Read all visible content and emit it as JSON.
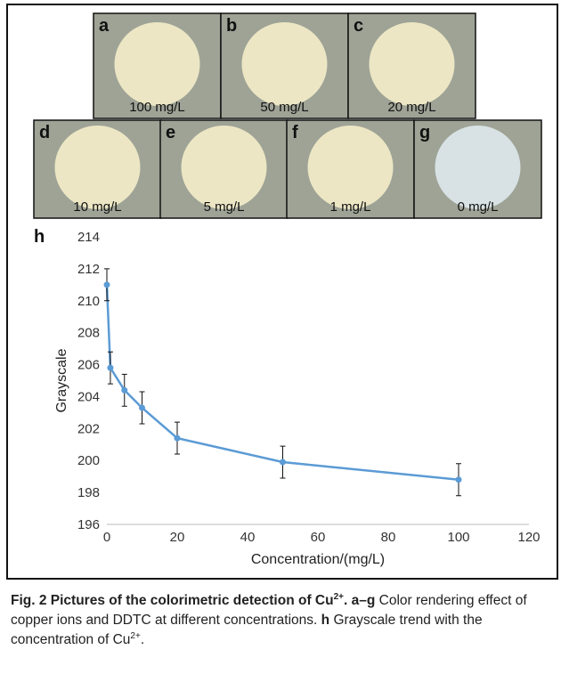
{
  "panels": [
    {
      "letter": "a",
      "label": "100 mg/L"
    },
    {
      "letter": "b",
      "label": "50 mg/L"
    },
    {
      "letter": "c",
      "label": "20 mg/L"
    },
    {
      "letter": "d",
      "label": "10 mg/L"
    },
    {
      "letter": "e",
      "label": "5 mg/L"
    },
    {
      "letter": "f",
      "label": "1 mg/L"
    },
    {
      "letter": "g",
      "label": "0 mg/L"
    }
  ],
  "chart_data": {
    "type": "line",
    "label": "h",
    "x_label": "Concentration/(mg/L)",
    "y_label": "Grayscale",
    "x": [
      0,
      1,
      5,
      10,
      20,
      50,
      100
    ],
    "values": [
      211.0,
      205.8,
      204.4,
      203.3,
      201.4,
      199.9,
      198.8
    ],
    "errors": [
      1,
      1,
      1,
      1,
      1,
      1,
      1
    ],
    "color": "#5b9bd5",
    "xlim": [
      0,
      120
    ],
    "xticks": [
      0,
      20,
      40,
      60,
      80,
      100,
      120
    ],
    "ylim": [
      196,
      214
    ],
    "yticks": [
      196,
      198,
      200,
      202,
      204,
      206,
      208,
      210,
      212,
      214
    ],
    "grid": false
  },
  "caption": {
    "title": "Fig. 2 Pictures of the colorimetric detection of Cu",
    "title_sup": "2+",
    "title_end": ".",
    "part1_label": "a–g",
    "part1": " Color rendering effect of copper ions and DDTC at different concentrations.",
    "part2_label": "h",
    "part2": " Grayscale trend with the concentration of Cu",
    "part2_sup": "2+",
    "part2_end": "."
  }
}
